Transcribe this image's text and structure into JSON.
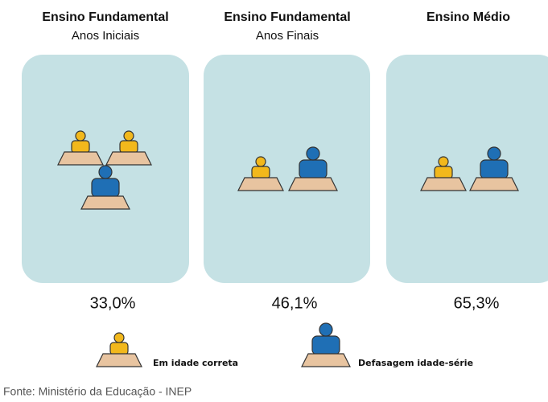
{
  "panels": [
    {
      "title": "Ensino Fundamental",
      "subtitle": "Anos Iniciais",
      "value": "33,0%"
    },
    {
      "title": "Ensino Fundamental",
      "subtitle": "Anos Finais",
      "value": "46,1%"
    },
    {
      "title": "Ensino Médio",
      "value": "65,3%"
    }
  ],
  "legend": [
    "Em idade correta",
    "Defasagem idade-série"
  ],
  "source": "Fonte: Ministério da Educação - INEP"
}
